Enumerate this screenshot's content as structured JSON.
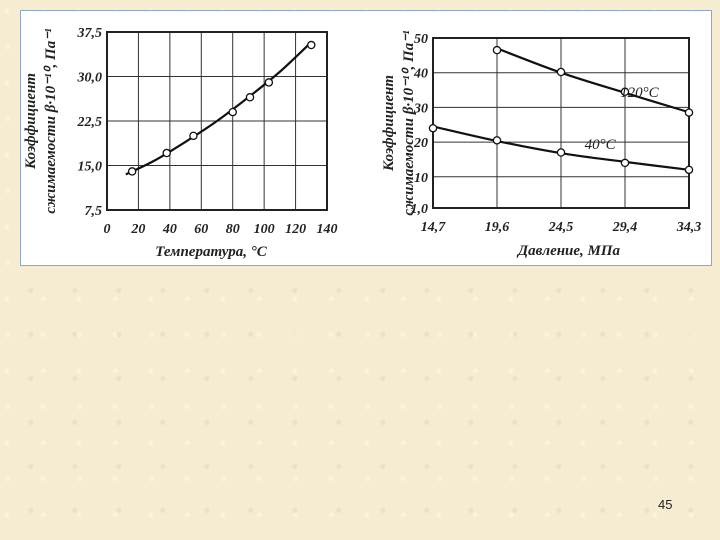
{
  "slide": {
    "page_number": "45"
  },
  "chart_data": [
    {
      "type": "line",
      "title": "",
      "xlabel": "Температура, °C",
      "ylabel_line1": "Коэффициент",
      "ylabel_line2": "сжимаемости β·10⁻¹⁰, Па⁻¹",
      "x_ticks": [
        "0",
        "20",
        "40",
        "60",
        "80",
        "100",
        "120",
        "140"
      ],
      "y_ticks": [
        "7,5",
        "15,0",
        "22,5",
        "30,0",
        "37,5"
      ],
      "xlim": [
        0,
        140
      ],
      "ylim": [
        7.5,
        37.5
      ],
      "grid": true,
      "series": [
        {
          "points": [
            [
              16,
              14.0
            ],
            [
              38,
              17.1
            ],
            [
              55,
              20.0
            ],
            [
              80,
              24.0
            ],
            [
              91,
              26.5
            ],
            [
              103,
              29.0
            ],
            [
              130,
              35.3
            ]
          ],
          "curve": [
            [
              12,
              13.5
            ],
            [
              30,
              15.8
            ],
            [
              50,
              19.0
            ],
            [
              70,
              22.5
            ],
            [
              90,
              26.5
            ],
            [
              110,
              30.8
            ],
            [
              130,
              35.8
            ]
          ]
        }
      ]
    },
    {
      "type": "line",
      "title": "",
      "xlabel": "Давление, МПа",
      "ylabel_line1": "Коэффициент",
      "ylabel_line2": "сжимаемости β·10⁻¹⁰, Па⁻¹",
      "x_ticks": [
        "14,7",
        "19,6",
        "24,5",
        "29,4",
        "34,3"
      ],
      "y_ticks": [
        "1,0",
        "10",
        "20",
        "30",
        "40",
        "50"
      ],
      "xlim": [
        14.7,
        34.3
      ],
      "ylim": [
        1.0,
        50
      ],
      "grid": true,
      "series": [
        {
          "name": "120°C",
          "label_at": [
            30.5,
            33
          ],
          "points": [
            [
              19.6,
              46.5
            ],
            [
              24.5,
              40.2
            ],
            [
              29.4,
              34.5
            ],
            [
              34.3,
              28.5
            ]
          ],
          "curve": [
            [
              19.6,
              47.0
            ],
            [
              24.5,
              40.0
            ],
            [
              29.4,
              34.2
            ],
            [
              34.3,
              28.6
            ]
          ]
        },
        {
          "name": "40°C",
          "label_at": [
            27.5,
            18
          ],
          "points": [
            [
              14.7,
              24.0
            ],
            [
              19.6,
              20.5
            ],
            [
              24.5,
              17.0
            ],
            [
              29.4,
              14.0
            ],
            [
              34.3,
              12.0
            ]
          ],
          "curve": [
            [
              14.7,
              24.5
            ],
            [
              19.6,
              20.3
            ],
            [
              24.5,
              16.8
            ],
            [
              29.4,
              14.3
            ],
            [
              34.3,
              12.0
            ]
          ]
        }
      ]
    }
  ]
}
